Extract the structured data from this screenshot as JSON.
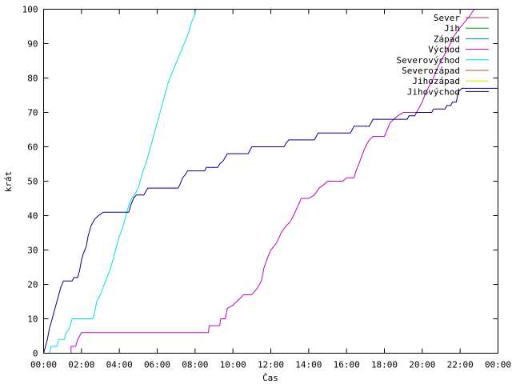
{
  "chart_data": {
    "type": "line",
    "title": "",
    "xlabel": "Čas",
    "ylabel": "krát",
    "xlim": [
      0,
      24
    ],
    "ylim": [
      0,
      100
    ],
    "x_ticks": [
      0,
      2,
      4,
      6,
      8,
      10,
      12,
      14,
      16,
      18,
      20,
      22,
      24
    ],
    "x_tick_labels": [
      "00:00",
      "02:00",
      "04:00",
      "06:00",
      "08:00",
      "10:00",
      "12:00",
      "14:00",
      "16:00",
      "18:00",
      "20:00",
      "22:00",
      "00:00"
    ],
    "y_ticks": [
      0,
      10,
      20,
      30,
      40,
      50,
      60,
      70,
      80,
      90,
      100
    ],
    "y_tick_labels": [
      "0",
      "10",
      "20",
      "30",
      "40",
      "50",
      "60",
      "70",
      "80",
      "90",
      "100"
    ],
    "grid": false,
    "legend_position": "top-right",
    "series": [
      {
        "name": "Sever",
        "color": "#b03060",
        "points": []
      },
      {
        "name": "Jih",
        "color": "#00a000",
        "points": []
      },
      {
        "name": "Západ",
        "color": "#0080a0",
        "points": []
      },
      {
        "name": "Východ",
        "color": "#c000c0",
        "points": [
          [
            0,
            0
          ],
          [
            1.45,
            0
          ],
          [
            1.45,
            2
          ],
          [
            1.7,
            2
          ],
          [
            1.8,
            4
          ],
          [
            2.0,
            6
          ],
          [
            8.7,
            6
          ],
          [
            8.75,
            8
          ],
          [
            9.3,
            8
          ],
          [
            9.35,
            10
          ],
          [
            9.6,
            10
          ],
          [
            9.7,
            13
          ],
          [
            10.0,
            14
          ],
          [
            10.2,
            15
          ],
          [
            10.4,
            16
          ],
          [
            10.55,
            17
          ],
          [
            11.0,
            17
          ],
          [
            11.3,
            19
          ],
          [
            11.5,
            21
          ],
          [
            11.65,
            25
          ],
          [
            11.85,
            28
          ],
          [
            12.0,
            30
          ],
          [
            12.3,
            32
          ],
          [
            12.55,
            35
          ],
          [
            12.8,
            37
          ],
          [
            13.0,
            38
          ],
          [
            13.2,
            40
          ],
          [
            13.45,
            43
          ],
          [
            13.6,
            45
          ],
          [
            14.0,
            45
          ],
          [
            14.3,
            46
          ],
          [
            14.55,
            48
          ],
          [
            14.8,
            49
          ],
          [
            15.0,
            50
          ],
          [
            15.8,
            50
          ],
          [
            16.0,
            51
          ],
          [
            16.4,
            51
          ],
          [
            16.5,
            53
          ],
          [
            16.65,
            55
          ],
          [
            16.85,
            58
          ],
          [
            17.0,
            60
          ],
          [
            17.2,
            62
          ],
          [
            17.4,
            63
          ],
          [
            18.0,
            63
          ],
          [
            18.15,
            65
          ],
          [
            18.3,
            67
          ],
          [
            18.5,
            68
          ],
          [
            18.7,
            69
          ],
          [
            19.0,
            70
          ],
          [
            19.7,
            70
          ],
          [
            20.0,
            73
          ],
          [
            20.2,
            76
          ],
          [
            20.4,
            78
          ],
          [
            20.6,
            80
          ],
          [
            20.8,
            83
          ],
          [
            21.0,
            85
          ],
          [
            21.2,
            87
          ],
          [
            21.4,
            89
          ],
          [
            21.65,
            92
          ],
          [
            21.9,
            94
          ],
          [
            22.2,
            96
          ],
          [
            22.5,
            98
          ],
          [
            22.75,
            100
          ]
        ]
      },
      {
        "name": "Severovýchod",
        "color": "#00e0e0",
        "points": [
          [
            0,
            0
          ],
          [
            0.3,
            0
          ],
          [
            0.4,
            2
          ],
          [
            0.7,
            2
          ],
          [
            0.8,
            4
          ],
          [
            1.1,
            4
          ],
          [
            1.2,
            6
          ],
          [
            1.35,
            7
          ],
          [
            1.5,
            10
          ],
          [
            2.6,
            10
          ],
          [
            2.7,
            12
          ],
          [
            2.8,
            15
          ],
          [
            3.0,
            17
          ],
          [
            3.2,
            20
          ],
          [
            3.35,
            22
          ],
          [
            3.55,
            25
          ],
          [
            3.7,
            28
          ],
          [
            3.85,
            31
          ],
          [
            4.0,
            34
          ],
          [
            4.2,
            37
          ],
          [
            4.35,
            40
          ],
          [
            4.5,
            43
          ],
          [
            4.65,
            45
          ],
          [
            4.8,
            46
          ],
          [
            5.0,
            48
          ],
          [
            5.1,
            50
          ],
          [
            5.25,
            53
          ],
          [
            5.4,
            55
          ],
          [
            5.55,
            58
          ],
          [
            5.7,
            61
          ],
          [
            5.85,
            64
          ],
          [
            6.0,
            67
          ],
          [
            6.15,
            70
          ],
          [
            6.3,
            73
          ],
          [
            6.45,
            76
          ],
          [
            6.6,
            79
          ],
          [
            6.75,
            81
          ],
          [
            6.9,
            83
          ],
          [
            7.05,
            85
          ],
          [
            7.2,
            87
          ],
          [
            7.35,
            89
          ],
          [
            7.5,
            91
          ],
          [
            7.65,
            93
          ],
          [
            7.8,
            96
          ],
          [
            7.95,
            98
          ],
          [
            8.05,
            100
          ]
        ]
      },
      {
        "name": "Severozápad",
        "color": "#a05030",
        "points": []
      },
      {
        "name": "Jihozápad",
        "color": "#e0e000",
        "points": []
      },
      {
        "name": "Jihovýchod",
        "color": "#000080",
        "points": [
          [
            0,
            0
          ],
          [
            0.1,
            2
          ],
          [
            0.2,
            4
          ],
          [
            0.3,
            7
          ],
          [
            0.45,
            10
          ],
          [
            0.6,
            13
          ],
          [
            0.75,
            16
          ],
          [
            0.9,
            19
          ],
          [
            1.05,
            21
          ],
          [
            1.5,
            21
          ],
          [
            1.6,
            22
          ],
          [
            1.8,
            22
          ],
          [
            1.9,
            24
          ],
          [
            2.0,
            27
          ],
          [
            2.1,
            29
          ],
          [
            2.25,
            31
          ],
          [
            2.35,
            34
          ],
          [
            2.5,
            37
          ],
          [
            2.7,
            39
          ],
          [
            2.9,
            40
          ],
          [
            3.15,
            41
          ],
          [
            4.5,
            41
          ],
          [
            4.6,
            43
          ],
          [
            4.75,
            45
          ],
          [
            4.9,
            46
          ],
          [
            5.3,
            46
          ],
          [
            5.4,
            47
          ],
          [
            5.5,
            48
          ],
          [
            7.1,
            48
          ],
          [
            7.2,
            49
          ],
          [
            7.35,
            51
          ],
          [
            7.5,
            52
          ],
          [
            7.6,
            53
          ],
          [
            8.5,
            53
          ],
          [
            8.6,
            54
          ],
          [
            9.2,
            54
          ],
          [
            9.3,
            55
          ],
          [
            9.5,
            56
          ],
          [
            9.6,
            57
          ],
          [
            9.7,
            58
          ],
          [
            10.8,
            58
          ],
          [
            10.9,
            59
          ],
          [
            11.0,
            60
          ],
          [
            12.7,
            60
          ],
          [
            12.8,
            61
          ],
          [
            12.95,
            62
          ],
          [
            14.3,
            62
          ],
          [
            14.4,
            63
          ],
          [
            14.5,
            64
          ],
          [
            16.2,
            64
          ],
          [
            16.3,
            65
          ],
          [
            16.4,
            66
          ],
          [
            17.2,
            66
          ],
          [
            17.3,
            67
          ],
          [
            17.4,
            68
          ],
          [
            19.2,
            68
          ],
          [
            19.3,
            69
          ],
          [
            19.6,
            69
          ],
          [
            19.7,
            70
          ],
          [
            20.5,
            70
          ],
          [
            20.6,
            71
          ],
          [
            21.2,
            71
          ],
          [
            21.3,
            72
          ],
          [
            21.5,
            72
          ],
          [
            21.6,
            73
          ],
          [
            21.8,
            73
          ],
          [
            21.9,
            76
          ],
          [
            22.1,
            77
          ],
          [
            24.0,
            77
          ]
        ]
      }
    ]
  }
}
